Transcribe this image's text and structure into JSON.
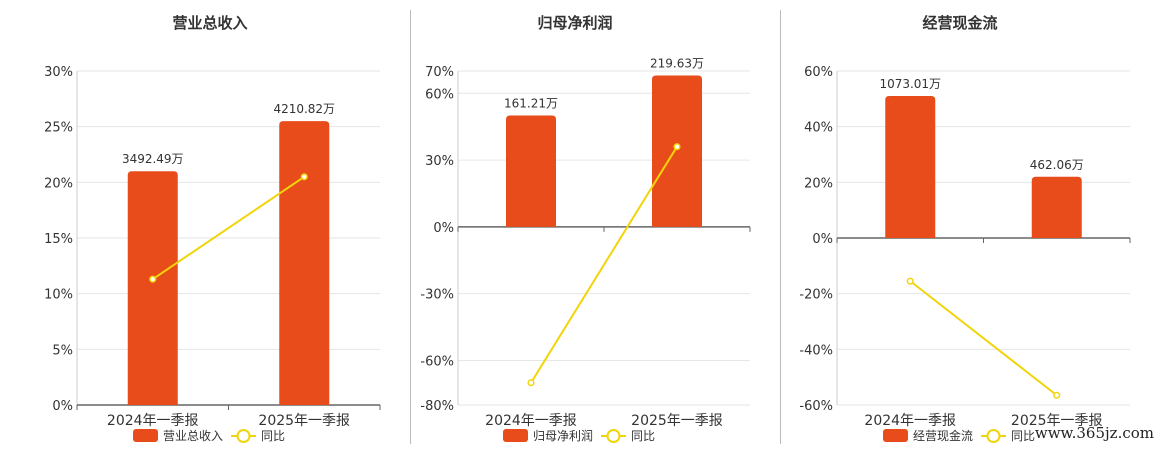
{
  "chart_data": [
    {
      "type": "bar",
      "title": "营业总收入",
      "categories": [
        "2024年一季报",
        "2025年一季报"
      ],
      "bar_labels": [
        "3492.49万",
        "4210.82万"
      ],
      "bar_values": [
        3492.49,
        4210.82
      ],
      "ylim": [
        0,
        30
      ],
      "yticks": [
        0,
        5,
        10,
        15,
        20,
        25,
        30
      ],
      "ytick_labels": [
        "0%",
        "5%",
        "10%",
        "15%",
        "20%",
        "25%",
        "30%"
      ],
      "series": [
        {
          "name": "营业总收入",
          "type": "bar",
          "values_on_axis": [
            21,
            25.5
          ],
          "color": "#e84c1a"
        },
        {
          "name": "同比",
          "type": "line",
          "values": [
            11.3,
            20.5
          ],
          "color": "#f2d40a"
        }
      ],
      "legend": [
        "营业总收入",
        "同比"
      ],
      "legend_position": "bottom",
      "grid": true
    },
    {
      "type": "bar",
      "title": "归母净利润",
      "categories": [
        "2024年一季报",
        "2025年一季报"
      ],
      "bar_labels": [
        "161.21万",
        "219.63万"
      ],
      "bar_values": [
        161.21,
        219.63
      ],
      "ylim": [
        -80,
        70
      ],
      "yticks": [
        -80,
        -60,
        -30,
        0,
        30,
        60,
        70
      ],
      "ytick_labels": [
        "-80%",
        "-60%",
        "-30%",
        "0%",
        "30%",
        "60%",
        "70%"
      ],
      "series": [
        {
          "name": "归母净利润",
          "type": "bar",
          "values_on_axis": [
            50,
            68
          ],
          "color": "#e84c1a"
        },
        {
          "name": "同比",
          "type": "line",
          "values": [
            -70,
            36
          ],
          "color": "#f2d40a"
        }
      ],
      "legend": [
        "归母净利润",
        "同比"
      ],
      "legend_position": "bottom",
      "grid": true
    },
    {
      "type": "bar",
      "title": "经营现金流",
      "categories": [
        "2024年一季报",
        "2025年一季报"
      ],
      "bar_labels": [
        "1073.01万",
        "462.06万"
      ],
      "bar_values": [
        1073.01,
        462.06
      ],
      "ylim": [
        -60,
        60
      ],
      "yticks": [
        -60,
        -40,
        -20,
        0,
        20,
        40,
        60
      ],
      "ytick_labels": [
        "-60%",
        "-40%",
        "-20%",
        "0%",
        "20%",
        "40%",
        "60%"
      ],
      "series": [
        {
          "name": "经营现金流",
          "type": "bar",
          "values_on_axis": [
            51,
            22
          ],
          "color": "#e84c1a"
        },
        {
          "name": "同比",
          "type": "line",
          "values": [
            -15.5,
            -56.5
          ],
          "color": "#f2d40a"
        }
      ],
      "legend": [
        "经营现金流",
        "同比"
      ],
      "legend_position": "bottom",
      "grid": true
    }
  ],
  "watermark": "www.365jz.com"
}
